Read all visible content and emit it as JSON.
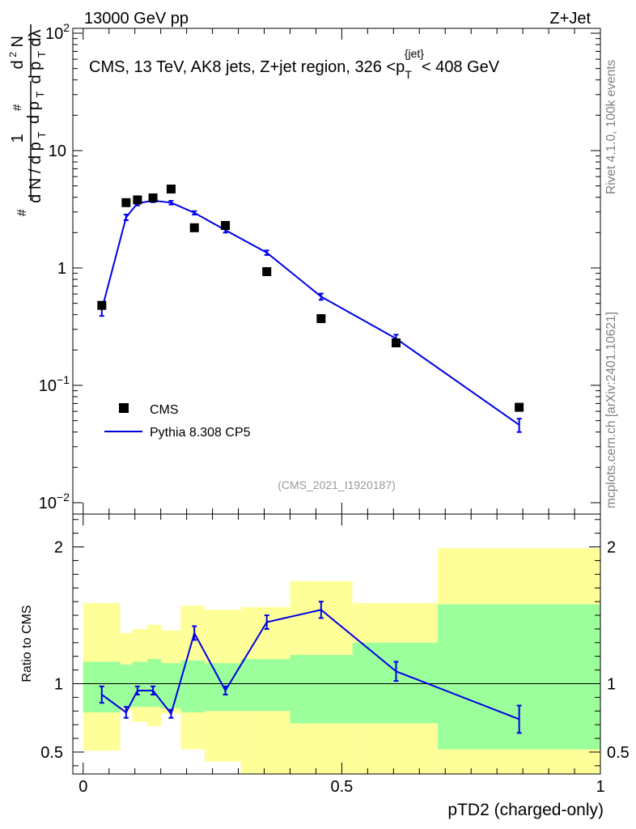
{
  "header": {
    "left": "13000 GeV pp",
    "right": "Z+Jet"
  },
  "side_labels": {
    "rivet": "Rivet 4.1.0,  100k events",
    "mcplots": "mcplots.cern.ch [arXiv:2401.10621]"
  },
  "colors": {
    "mc": "#0000e6",
    "data": "#000000",
    "band_inner": "#9bff9b",
    "band_outer": "#ffff99"
  },
  "chart_data": [
    {
      "type": "scatter",
      "panel": "main",
      "title": "CMS, 13 TeV, AK8 jets, Z+jet region, 326 <p_T^{jet}< 408 GeV",
      "title_parts": {
        "main": "CMS, 13 TeV, AK8 jets, Z+jet region, 326 <p",
        "sub": "T",
        "sup": "{jet}",
        "tail": "< 408 GeV"
      },
      "ylabel": "1/(dN/dpT) d2N/dpT dλ",
      "yscale": "log",
      "ylim": [
        0.008,
        110
      ],
      "xlim": [
        -0.02,
        1.0
      ],
      "y_ticks": [
        {
          "value": 0.01,
          "base": "10",
          "exp": "−2"
        },
        {
          "value": 0.1,
          "base": "10",
          "exp": "−1"
        },
        {
          "value": 1,
          "base": "1",
          "exp": ""
        },
        {
          "value": 10,
          "base": "10",
          "exp": ""
        },
        {
          "value": 100,
          "base": "10",
          "exp": "2"
        }
      ],
      "watermark": "(CMS_2021_I1920187)",
      "legend": {
        "position": "bottom-left",
        "data_label": "CMS",
        "mc_label": "Pythia 8.308 CP5"
      },
      "bin_edges": [
        0.0,
        0.0714,
        0.0952,
        0.1238,
        0.1508,
        0.1889,
        0.2349,
        0.3048,
        0.4,
        0.5206,
        0.6857,
        1.0
      ],
      "data": {
        "name": "CMS",
        "x": [
          0.036,
          0.083,
          0.105,
          0.135,
          0.17,
          0.215,
          0.275,
          0.355,
          0.46,
          0.605,
          0.843
        ],
        "y": [
          0.48,
          3.6,
          3.8,
          3.95,
          4.7,
          2.2,
          2.3,
          0.93,
          0.37,
          0.23,
          0.065
        ]
      },
      "series": [
        {
          "name": "Pythia 8.308 CP5",
          "x": [
            0.036,
            0.083,
            0.105,
            0.135,
            0.17,
            0.215,
            0.275,
            0.355,
            0.46,
            0.605,
            0.843
          ],
          "y": [
            0.44,
            2.7,
            3.55,
            3.75,
            3.6,
            2.95,
            2.1,
            1.35,
            0.57,
            0.25,
            0.046
          ],
          "yerr": [
            0.05,
            0.15,
            0.14,
            0.12,
            0.13,
            0.1,
            0.1,
            0.06,
            0.035,
            0.02,
            0.006
          ]
        }
      ]
    },
    {
      "type": "line",
      "panel": "ratio",
      "ylabel": "Ratio to CMS",
      "ylim": [
        0.34,
        2.24
      ],
      "xlim": [
        -0.02,
        1.0
      ],
      "xlabel": "pTD2 (charged-only)",
      "x_ticks": [
        {
          "value": 0,
          "label": "0"
        },
        {
          "value": 0.5,
          "label": "0.5"
        },
        {
          "value": 1,
          "label": "1"
        }
      ],
      "y_ticks": [
        {
          "value": 0.5,
          "label": "0.5"
        },
        {
          "value": 1,
          "label": "1"
        },
        {
          "value": 2,
          "label": "2"
        }
      ],
      "bin_edges": [
        0.0,
        0.0714,
        0.0952,
        0.1238,
        0.1508,
        0.1889,
        0.2349,
        0.3048,
        0.4,
        0.5206,
        0.6857,
        1.0
      ],
      "band_inner": {
        "lo": [
          0.79,
          0.83,
          0.83,
          0.83,
          0.82,
          0.79,
          0.8,
          0.8,
          0.71,
          0.71,
          0.52
        ],
        "hi": [
          1.16,
          1.14,
          1.16,
          1.18,
          1.15,
          1.17,
          1.15,
          1.18,
          1.21,
          1.3,
          1.58
        ]
      },
      "band_outer": {
        "lo": [
          0.51,
          0.8,
          0.72,
          0.69,
          0.78,
          0.52,
          0.43,
          0.34,
          0.34,
          0.34,
          0.34
        ],
        "hi": [
          1.59,
          1.37,
          1.4,
          1.43,
          1.39,
          1.57,
          1.54,
          1.56,
          1.75,
          1.59,
          1.99
        ]
      },
      "series": [
        {
          "name": "Pythia 8.308 CP5",
          "x": [
            0.036,
            0.083,
            0.105,
            0.135,
            0.17,
            0.215,
            0.275,
            0.355,
            0.46,
            0.605,
            0.843
          ],
          "y": [
            0.92,
            0.79,
            0.95,
            0.95,
            0.78,
            1.37,
            0.95,
            1.45,
            1.54,
            1.09,
            0.74
          ],
          "yerr": [
            0.06,
            0.04,
            0.03,
            0.03,
            0.03,
            0.05,
            0.03,
            0.05,
            0.06,
            0.07,
            0.1
          ]
        }
      ]
    }
  ]
}
